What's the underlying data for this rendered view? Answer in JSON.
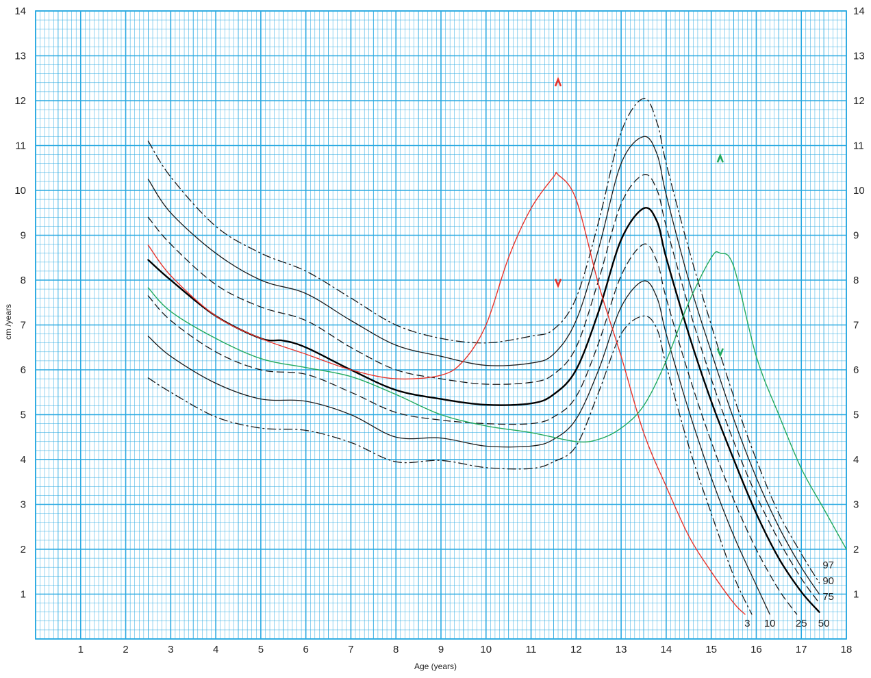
{
  "chart_data": {
    "type": "line",
    "title": "",
    "xlabel": "Age (years)",
    "ylabel": "cm /years",
    "xlim": [
      0,
      18
    ],
    "ylim": [
      0,
      14
    ],
    "x_ticks": [
      "1",
      "2",
      "3",
      "4",
      "5",
      "6",
      "7",
      "8",
      "9",
      "10",
      "11",
      "12",
      "13",
      "14",
      "15",
      "16",
      "17",
      "18"
    ],
    "y_ticks": [
      "1",
      "2",
      "3",
      "4",
      "5",
      "6",
      "7",
      "8",
      "9",
      "10",
      "11",
      "12",
      "13",
      "14"
    ],
    "grid": true,
    "grid_color": "#29a9e1",
    "series": [
      {
        "name": "97",
        "color": "#1a1a1a",
        "dash": "dashdot",
        "width": 1.3,
        "points": [
          [
            2.5,
            11.1
          ],
          [
            3,
            10.3
          ],
          [
            4,
            9.2
          ],
          [
            5,
            8.6
          ],
          [
            6,
            8.2
          ],
          [
            7,
            7.6
          ],
          [
            8,
            7.0
          ],
          [
            9,
            6.7
          ],
          [
            10,
            6.6
          ],
          [
            11,
            6.75
          ],
          [
            11.5,
            6.9
          ],
          [
            12,
            7.6
          ],
          [
            12.5,
            9.3
          ],
          [
            13,
            11.3
          ],
          [
            13.5,
            12.05
          ],
          [
            13.8,
            11.5
          ],
          [
            14,
            10.6
          ],
          [
            14.5,
            8.7
          ],
          [
            15,
            7.0
          ],
          [
            15.5,
            5.4
          ],
          [
            16,
            4.0
          ],
          [
            16.5,
            2.8
          ],
          [
            17,
            1.9
          ],
          [
            17.4,
            1.25
          ]
        ]
      },
      {
        "name": "90",
        "color": "#1a1a1a",
        "dash": "solid",
        "width": 1.3,
        "points": [
          [
            2.5,
            10.25
          ],
          [
            3,
            9.5
          ],
          [
            4,
            8.6
          ],
          [
            5,
            8.0
          ],
          [
            6,
            7.7
          ],
          [
            7,
            7.1
          ],
          [
            8,
            6.55
          ],
          [
            9,
            6.3
          ],
          [
            10,
            6.1
          ],
          [
            11,
            6.15
          ],
          [
            11.5,
            6.35
          ],
          [
            12,
            7.1
          ],
          [
            12.5,
            8.7
          ],
          [
            13,
            10.6
          ],
          [
            13.5,
            11.2
          ],
          [
            13.8,
            10.8
          ],
          [
            14,
            9.9
          ],
          [
            14.5,
            8.0
          ],
          [
            15,
            6.4
          ],
          [
            15.5,
            4.9
          ],
          [
            16,
            3.6
          ],
          [
            16.5,
            2.5
          ],
          [
            17,
            1.6
          ],
          [
            17.4,
            1.0
          ]
        ]
      },
      {
        "name": "75",
        "color": "#1a1a1a",
        "dash": "dash",
        "width": 1.3,
        "points": [
          [
            2.5,
            9.4
          ],
          [
            3,
            8.8
          ],
          [
            4,
            7.9
          ],
          [
            5,
            7.4
          ],
          [
            6,
            7.1
          ],
          [
            7,
            6.5
          ],
          [
            8,
            6.0
          ],
          [
            9,
            5.8
          ],
          [
            10,
            5.68
          ],
          [
            11,
            5.72
          ],
          [
            11.5,
            5.9
          ],
          [
            12,
            6.5
          ],
          [
            12.5,
            8.0
          ],
          [
            13,
            9.7
          ],
          [
            13.5,
            10.35
          ],
          [
            13.8,
            10.0
          ],
          [
            14,
            9.2
          ],
          [
            14.5,
            7.4
          ],
          [
            15,
            5.8
          ],
          [
            15.5,
            4.4
          ],
          [
            16,
            3.2
          ],
          [
            16.5,
            2.2
          ],
          [
            17,
            1.35
          ],
          [
            17.4,
            0.8
          ]
        ]
      },
      {
        "name": "50",
        "color": "#000000",
        "dash": "solid",
        "width": 2.4,
        "points": [
          [
            2.5,
            8.45
          ],
          [
            3,
            8.0
          ],
          [
            4,
            7.2
          ],
          [
            5,
            6.7
          ],
          [
            5.5,
            6.65
          ],
          [
            6,
            6.5
          ],
          [
            7,
            6.0
          ],
          [
            8,
            5.55
          ],
          [
            9,
            5.35
          ],
          [
            10,
            5.22
          ],
          [
            11,
            5.25
          ],
          [
            11.5,
            5.45
          ],
          [
            12,
            6.0
          ],
          [
            12.5,
            7.3
          ],
          [
            13,
            8.9
          ],
          [
            13.5,
            9.6
          ],
          [
            13.8,
            9.3
          ],
          [
            14,
            8.5
          ],
          [
            14.5,
            6.8
          ],
          [
            15,
            5.3
          ],
          [
            15.5,
            4.0
          ],
          [
            16,
            2.8
          ],
          [
            16.5,
            1.8
          ],
          [
            17,
            1.05
          ],
          [
            17.4,
            0.6
          ]
        ]
      },
      {
        "name": "25",
        "color": "#1a1a1a",
        "dash": "dash",
        "width": 1.3,
        "points": [
          [
            2.5,
            7.65
          ],
          [
            3,
            7.1
          ],
          [
            4,
            6.4
          ],
          [
            5,
            6.0
          ],
          [
            6,
            5.9
          ],
          [
            7,
            5.5
          ],
          [
            8,
            5.05
          ],
          [
            9,
            4.88
          ],
          [
            10,
            4.8
          ],
          [
            11,
            4.8
          ],
          [
            11.5,
            4.95
          ],
          [
            12,
            5.4
          ],
          [
            12.5,
            6.6
          ],
          [
            13,
            8.1
          ],
          [
            13.5,
            8.8
          ],
          [
            13.8,
            8.4
          ],
          [
            14,
            7.6
          ],
          [
            14.5,
            5.9
          ],
          [
            15,
            4.4
          ],
          [
            15.5,
            3.1
          ],
          [
            16,
            2.0
          ],
          [
            16.5,
            1.1
          ],
          [
            16.9,
            0.55
          ]
        ]
      },
      {
        "name": "10",
        "color": "#1a1a1a",
        "dash": "solid",
        "width": 1.3,
        "points": [
          [
            2.5,
            6.75
          ],
          [
            3,
            6.3
          ],
          [
            4,
            5.7
          ],
          [
            5,
            5.35
          ],
          [
            6,
            5.3
          ],
          [
            7,
            5.0
          ],
          [
            8,
            4.5
          ],
          [
            9,
            4.48
          ],
          [
            10,
            4.3
          ],
          [
            11,
            4.3
          ],
          [
            11.5,
            4.45
          ],
          [
            12,
            4.9
          ],
          [
            12.5,
            6.0
          ],
          [
            13,
            7.4
          ],
          [
            13.5,
            7.98
          ],
          [
            13.8,
            7.6
          ],
          [
            14,
            6.8
          ],
          [
            14.5,
            5.1
          ],
          [
            15,
            3.6
          ],
          [
            15.5,
            2.3
          ],
          [
            16,
            1.2
          ],
          [
            16.3,
            0.55
          ]
        ]
      },
      {
        "name": "3",
        "color": "#1a1a1a",
        "dash": "dashdot",
        "width": 1.3,
        "points": [
          [
            2.5,
            5.82
          ],
          [
            3,
            5.5
          ],
          [
            4,
            4.95
          ],
          [
            5,
            4.7
          ],
          [
            6,
            4.65
          ],
          [
            7,
            4.38
          ],
          [
            8,
            3.95
          ],
          [
            9,
            3.98
          ],
          [
            10,
            3.82
          ],
          [
            11,
            3.8
          ],
          [
            11.5,
            3.95
          ],
          [
            12,
            4.3
          ],
          [
            12.5,
            5.5
          ],
          [
            13,
            6.8
          ],
          [
            13.5,
            7.2
          ],
          [
            13.8,
            6.9
          ],
          [
            14,
            6.1
          ],
          [
            14.5,
            4.3
          ],
          [
            15,
            2.8
          ],
          [
            15.5,
            1.4
          ],
          [
            15.9,
            0.55
          ]
        ]
      },
      {
        "name": "red",
        "color": "#e8322a",
        "dash": "solid",
        "width": 1.4,
        "points": [
          [
            2.5,
            8.78
          ],
          [
            3,
            8.1
          ],
          [
            4,
            7.2
          ],
          [
            5,
            6.7
          ],
          [
            6,
            6.35
          ],
          [
            7,
            6.0
          ],
          [
            8,
            5.8
          ],
          [
            9,
            5.88
          ],
          [
            9.5,
            6.2
          ],
          [
            10,
            7.0
          ],
          [
            10.5,
            8.5
          ],
          [
            11,
            9.6
          ],
          [
            11.5,
            10.3
          ],
          [
            11.6,
            10.35
          ],
          [
            12,
            9.8
          ],
          [
            12.5,
            7.9
          ],
          [
            13,
            6.3
          ],
          [
            13.5,
            4.6
          ],
          [
            14,
            3.4
          ],
          [
            14.5,
            2.3
          ],
          [
            15,
            1.5
          ],
          [
            15.5,
            0.8
          ],
          [
            15.75,
            0.55
          ]
        ]
      },
      {
        "name": "green",
        "color": "#22a95c",
        "dash": "solid",
        "width": 1.4,
        "points": [
          [
            2.5,
            7.83
          ],
          [
            3,
            7.3
          ],
          [
            4,
            6.7
          ],
          [
            5,
            6.25
          ],
          [
            6,
            6.05
          ],
          [
            7,
            5.85
          ],
          [
            8,
            5.45
          ],
          [
            9,
            5.0
          ],
          [
            10,
            4.75
          ],
          [
            11,
            4.6
          ],
          [
            12,
            4.4
          ],
          [
            12.5,
            4.45
          ],
          [
            13,
            4.7
          ],
          [
            13.5,
            5.2
          ],
          [
            14,
            6.2
          ],
          [
            14.5,
            7.5
          ],
          [
            15,
            8.5
          ],
          [
            15.2,
            8.6
          ],
          [
            15.5,
            8.3
          ],
          [
            16,
            6.3
          ],
          [
            16.5,
            5.0
          ],
          [
            17,
            3.8
          ],
          [
            17.5,
            2.9
          ],
          [
            18,
            2.0
          ]
        ]
      }
    ],
    "curve_labels": [
      {
        "text": "97",
        "x": 17.6,
        "y": 1.65
      },
      {
        "text": "90",
        "x": 17.6,
        "y": 1.3
      },
      {
        "text": "75",
        "x": 17.6,
        "y": 0.95
      },
      {
        "text": "50",
        "x": 17.5,
        "y": 0.35
      },
      {
        "text": "25",
        "x": 17.0,
        "y": 0.35
      },
      {
        "text": "10",
        "x": 16.3,
        "y": 0.35
      },
      {
        "text": "3",
        "x": 15.8,
        "y": 0.35
      }
    ],
    "annotations": [
      {
        "text": "^",
        "x": 11.6,
        "y": 12.4,
        "color": "#e8322a"
      },
      {
        "text": "v",
        "x": 11.6,
        "y": 7.95,
        "color": "#e8322a"
      },
      {
        "text": "^",
        "x": 15.2,
        "y": 10.7,
        "color": "#22a95c"
      },
      {
        "text": "v",
        "x": 15.2,
        "y": 6.4,
        "color": "#22a95c"
      }
    ]
  }
}
